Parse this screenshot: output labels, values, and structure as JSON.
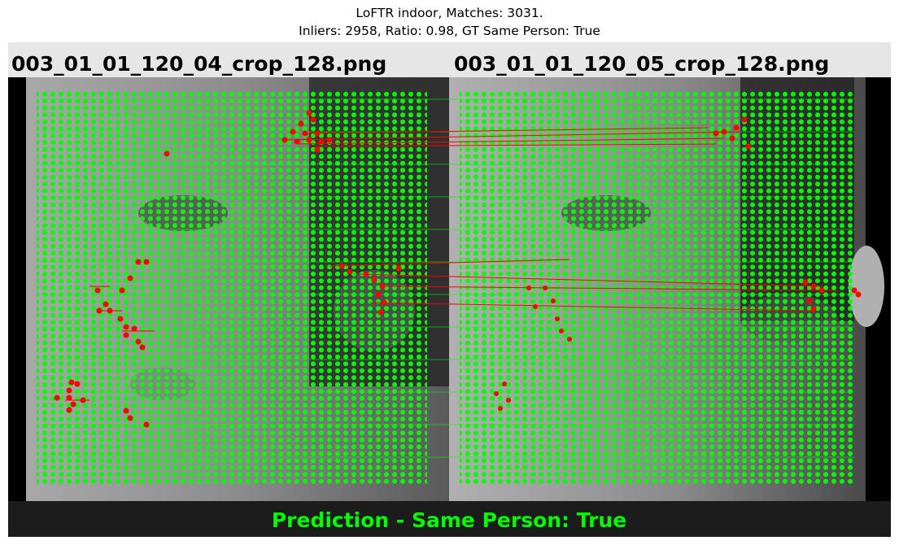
{
  "title": {
    "line1": "LoFTR indoor, Matches: 3031.",
    "line2": "Inliers: 2958, Ratio: 0.98, GT Same Person: True"
  },
  "images": {
    "left_filename": "003_01_01_120_04_crop_128.png",
    "right_filename": "003_01_01_120_05_crop_128.png"
  },
  "footer": {
    "prediction": "Prediction - Same Person: True"
  },
  "colors": {
    "inlier": "#00ff00",
    "outlier": "#ff0000",
    "header_bg": "#e6e6e6",
    "footer_bg": "#1c1c1c",
    "footer_text": "#00ff00"
  }
}
